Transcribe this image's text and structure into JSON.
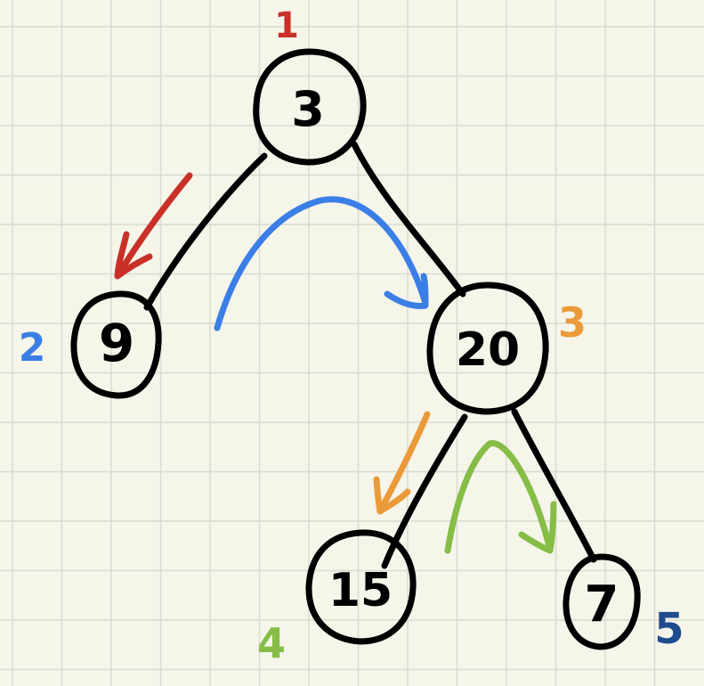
{
  "tree": {
    "nodes": [
      {
        "id": "root",
        "value": "3"
      },
      {
        "id": "left",
        "value": "9"
      },
      {
        "id": "right",
        "value": "20"
      },
      {
        "id": "right-left",
        "value": "15"
      },
      {
        "id": "right-right",
        "value": "7"
      }
    ],
    "edges": [
      {
        "from": "3",
        "to": "9"
      },
      {
        "from": "3",
        "to": "20"
      },
      {
        "from": "20",
        "to": "15"
      },
      {
        "from": "20",
        "to": "7"
      }
    ]
  },
  "visit_order": [
    {
      "label": "1",
      "node": "3",
      "color": "#c93028"
    },
    {
      "label": "2",
      "node": "9",
      "color": "#3a7ee6"
    },
    {
      "label": "3",
      "node": "20",
      "color": "#eb9a3a"
    },
    {
      "label": "4",
      "node": "15",
      "color": "#86bd46"
    },
    {
      "label": "5",
      "node": "7",
      "color": "#1f4b8e"
    }
  ],
  "colors": {
    "background": "#f5f5ea",
    "grid": "#d9dbd0",
    "ink": "#000000",
    "arrow_red": "#c93028",
    "arrow_blue": "#3a7ee6",
    "arrow_orange": "#eb9a3a",
    "arrow_green": "#86bd46"
  }
}
